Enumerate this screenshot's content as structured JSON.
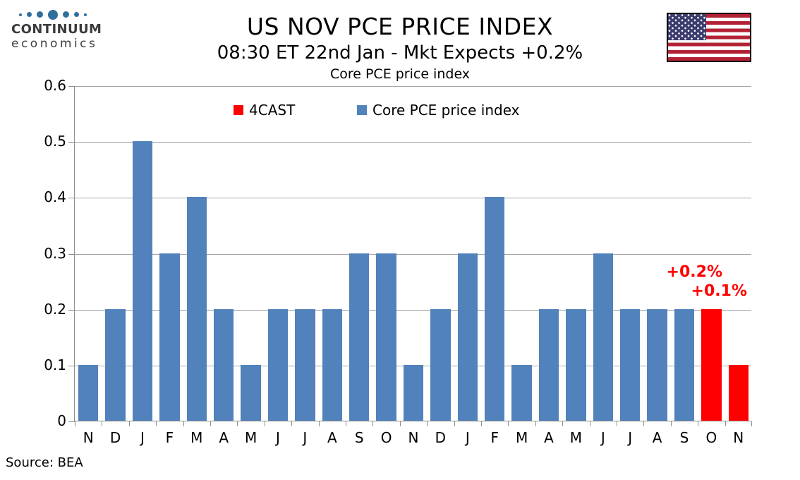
{
  "logo": {
    "line1": "CONTINUUM",
    "line2": "economics",
    "dot_color": "#2F6F9E"
  },
  "header": {
    "title": "US NOV PCE PRICE INDEX",
    "subtitle": "08:30 ET 22nd Jan - Mkt Expects +0.2%",
    "chart_title": "Core PCE price index"
  },
  "flag": {
    "name": "us-flag",
    "red": "#B22234",
    "blue": "#3C3B6E",
    "white": "#FFFFFF"
  },
  "source": "Source: BEA",
  "colors": {
    "bar_blue": "#5182BB",
    "bar_red": "#FF0000",
    "grid": "#A8A8A8",
    "axis": "#8E8E8E",
    "annotation": "#FF0000"
  },
  "chart_data": {
    "type": "bar",
    "title": "Core PCE price index",
    "xlabel": "",
    "ylabel": "",
    "ylim": [
      0,
      0.6
    ],
    "yticks": [
      0,
      0.1,
      0.2,
      0.3,
      0.4,
      0.5,
      0.6
    ],
    "grid": true,
    "legend_position": "top-center",
    "categories": [
      "N",
      "D",
      "J",
      "F",
      "M",
      "A",
      "M",
      "J",
      "J",
      "A",
      "S",
      "O",
      "N",
      "D",
      "J",
      "F",
      "M",
      "A",
      "M",
      "J",
      "J",
      "A",
      "S",
      "O",
      "N"
    ],
    "series": [
      {
        "name": "Core PCE price index",
        "color": "#5182BB",
        "values": [
          0.1,
          0.2,
          0.5,
          0.3,
          0.4,
          0.2,
          0.1,
          0.2,
          0.2,
          0.2,
          0.3,
          0.3,
          0.1,
          0.2,
          0.3,
          0.4,
          0.1,
          0.2,
          0.2,
          0.3,
          0.2,
          0.2,
          0.2,
          null,
          null
        ]
      },
      {
        "name": "4CAST",
        "color": "#FF0000",
        "values": [
          null,
          null,
          null,
          null,
          null,
          null,
          null,
          null,
          null,
          null,
          null,
          null,
          null,
          null,
          null,
          null,
          null,
          null,
          null,
          null,
          null,
          null,
          null,
          0.2,
          0.1
        ]
      }
    ],
    "legend": [
      {
        "label": "4CAST",
        "color": "#FF0000"
      },
      {
        "label": "Core PCE price index",
        "color": "#5182BB"
      }
    ],
    "annotations": [
      {
        "text": "+0.2%",
        "color": "#FF0000"
      },
      {
        "text": "+0.1%",
        "color": "#FF0000"
      }
    ]
  }
}
